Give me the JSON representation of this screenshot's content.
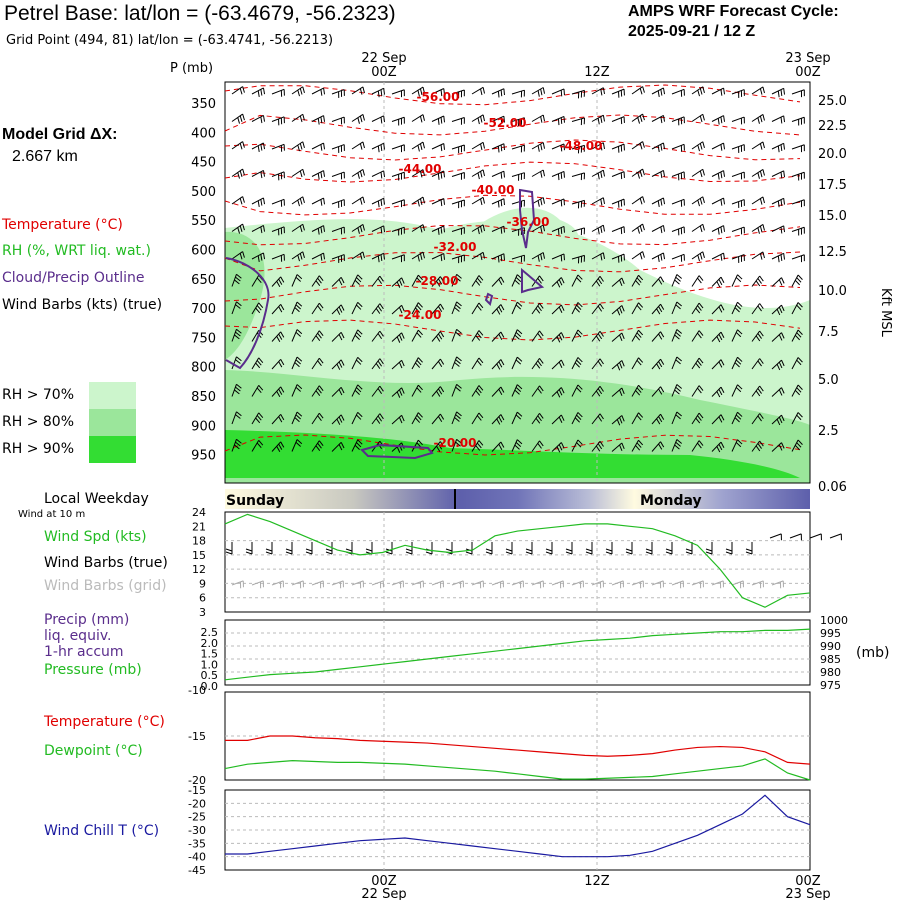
{
  "header": {
    "title": "Petrel Base:  lat/lon = (-63.4679, -56.2323)",
    "subtitle": "Grid Point (494, 81) lat/lon = (-63.4741, -56.2213)",
    "cycle_line1": "AMPS WRF Forecast Cycle:",
    "cycle_line2": "2025-09-21 / 12  Z"
  },
  "time_axis": {
    "top_dates": [
      "22 Sep",
      "23 Sep"
    ],
    "ticks": [
      "00Z",
      "12Z",
      "00Z"
    ],
    "bottom_dates": [
      "22 Sep",
      "23 Sep"
    ]
  },
  "left_panel": {
    "p_label": "P (mb)",
    "model_grid_label": "Model Grid ΔX:",
    "model_grid_value": "2.667 km",
    "legend_temperature": "Temperature (°C)",
    "legend_rh": "RH (%, WRT liq. wat.)",
    "legend_cloud": "Cloud/Precip Outline",
    "legend_wind": "Wind Barbs (kts) (true)",
    "rh_70": "RH > 70%",
    "rh_80": "RH > 80%",
    "rh_90": "RH > 90%",
    "local_weekday": "Local Weekday",
    "wind_10m": "Wind at 10 m",
    "wind_spd": "Wind Spd (kts)",
    "wind_barbs_true": "Wind Barbs (true)",
    "wind_barbs_grid": "Wind Barbs (grid)",
    "precip": "Precip (mm)",
    "liq_equiv": "liq. equiv.",
    "hr_accum": "1-hr accum",
    "pressure": "Pressure (mb)",
    "temperature": "Temperature (°C)",
    "dewpoint": "Dewpoint (°C)",
    "wind_chill": "Wind Chill T (°C)"
  },
  "right_labels": {
    "kft_msl": "Kft MSL",
    "mb_unit": "(mb)"
  },
  "weekday_bar": {
    "left_day": "Sunday",
    "right_day": "Monday"
  },
  "colors": {
    "temperature": "#e00000",
    "rh": "#22bb22",
    "cloud": "#5a2d8c",
    "wind": "#000000",
    "wind_grid": "#aaaaaa",
    "wind_chill": "#1a1aa0",
    "rh70": "#ccf5cc",
    "rh80": "#9be69b",
    "rh90": "#33dd33"
  },
  "chart_data": [
    {
      "type": "heatmap",
      "title": "",
      "ylabel": "P (mb)",
      "y_ticks_left": [
        "350",
        "400",
        "450",
        "500",
        "550",
        "600",
        "650",
        "700",
        "750",
        "800",
        "850",
        "900",
        "950"
      ],
      "y_ticks_right": [
        "25.0",
        "22.5",
        "20.0",
        "17.5",
        "15.0",
        "12.5",
        "10.0",
        "7.5",
        "5.0",
        "2.5",
        "0.06"
      ],
      "ylabel_right": "Kft MSL",
      "temperature_contour_labels": [
        "-56.00",
        "-52.00",
        "-48.00",
        "-44.00",
        "-40.00",
        "-36.00",
        "-32.00",
        "-28.00",
        "-24.00",
        "-20.00"
      ]
    },
    {
      "type": "line",
      "title": "",
      "ylabel": "Wind Spd (kts)",
      "y_ticks": [
        "24",
        "21",
        "18",
        "15",
        "12",
        "9",
        "6",
        "3"
      ],
      "ylim": [
        3,
        24
      ],
      "series": [
        {
          "name": "Wind Spd (kts)",
          "color": "#22bb22",
          "values": [
            21.5,
            23.5,
            22,
            20,
            18,
            16,
            15,
            15.5,
            17,
            16,
            15.5,
            16,
            19,
            20,
            20.5,
            21,
            21.5,
            21.5,
            21,
            20.5,
            19,
            17,
            12,
            6,
            4,
            6.5,
            7
          ]
        }
      ]
    },
    {
      "type": "line",
      "title": "",
      "y_ticks_left": [
        "2.5",
        "2.0",
        "1.5",
        "1.0",
        "0.5",
        "0.0"
      ],
      "y_ticks_right": [
        "1000",
        "995",
        "990",
        "985",
        "980",
        "975"
      ],
      "ylabel_right": "(mb)",
      "ylim_right": [
        975,
        1000
      ],
      "series": [
        {
          "name": "Pressure (mb)",
          "color": "#22bb22",
          "values": [
            977,
            978,
            979,
            979.5,
            980,
            981,
            982,
            983,
            984,
            985,
            986,
            987,
            988,
            989,
            990,
            991,
            992,
            992.5,
            993,
            994,
            994.5,
            995,
            995.5,
            995.5,
            996,
            996,
            996.5
          ]
        }
      ]
    },
    {
      "type": "line",
      "title": "",
      "y_ticks": [
        "-10",
        "-15",
        "-20"
      ],
      "ylim": [
        -20,
        -10
      ],
      "series": [
        {
          "name": "Temperature (°C)",
          "color": "#e00000",
          "values": [
            -15.5,
            -15.5,
            -15,
            -15,
            -15.2,
            -15.3,
            -15.5,
            -15.6,
            -15.7,
            -15.8,
            -16,
            -16.2,
            -16.4,
            -16.6,
            -16.8,
            -17.0,
            -17.2,
            -17.3,
            -17.2,
            -17,
            -16.6,
            -16.3,
            -16.2,
            -16.3,
            -16.8,
            -18.0,
            -18.2
          ]
        },
        {
          "name": "Dewpoint (°C)",
          "color": "#22bb22",
          "values": [
            -18.7,
            -18.2,
            -18.0,
            -17.8,
            -17.9,
            -18.0,
            -18.0,
            -18.1,
            -18.2,
            -18.4,
            -18.6,
            -18.8,
            -19.0,
            -19.3,
            -19.6,
            -19.9,
            -19.9,
            -19.8,
            -19.7,
            -19.6,
            -19.3,
            -19.0,
            -18.7,
            -18.4,
            -17.6,
            -19.2,
            -20.0
          ]
        }
      ]
    },
    {
      "type": "line",
      "title": "",
      "y_ticks": [
        "-15",
        "-20",
        "-25",
        "-30",
        "-35",
        "-40",
        "-45"
      ],
      "ylim": [
        -45,
        -15
      ],
      "series": [
        {
          "name": "Wind Chill T (°C)",
          "color": "#1a1aa0",
          "values": [
            -39,
            -39,
            -38,
            -37,
            -36,
            -35,
            -34,
            -33.5,
            -33,
            -34,
            -35,
            -36,
            -37,
            -38,
            -39,
            -40,
            -40,
            -40,
            -39.5,
            -38,
            -35,
            -32,
            -28,
            -24,
            -17,
            -25,
            -28
          ]
        }
      ]
    }
  ]
}
